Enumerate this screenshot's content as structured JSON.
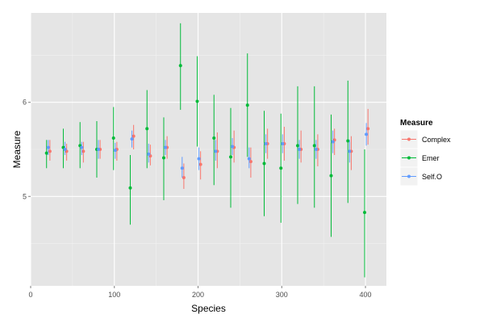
{
  "chart_data": {
    "type": "scatter",
    "title": "",
    "xlabel": "Species",
    "ylabel": "Measure",
    "xlim": [
      0,
      425
    ],
    "ylim": [
      4.05,
      6.95
    ],
    "x_ticks": [
      0,
      100,
      200,
      300,
      400
    ],
    "x_tick_labels": [
      "0",
      "100",
      "200",
      "300",
      "400"
    ],
    "y_ticks": [
      5,
      6
    ],
    "y_tick_labels": [
      "5",
      "6"
    ],
    "grid": true,
    "legend": {
      "title": "Measure",
      "position": "right"
    },
    "series": [
      {
        "name": "Complex",
        "color": "#F8766D",
        "points": [
          {
            "x": 23,
            "y": 5.48,
            "lo": 5.38,
            "hi": 5.6
          },
          {
            "x": 43,
            "y": 5.48,
            "lo": 5.38,
            "hi": 5.56
          },
          {
            "x": 63,
            "y": 5.48,
            "lo": 5.36,
            "hi": 5.58
          },
          {
            "x": 83,
            "y": 5.5,
            "lo": 5.4,
            "hi": 5.6
          },
          {
            "x": 103,
            "y": 5.5,
            "lo": 5.38,
            "hi": 5.58
          },
          {
            "x": 123,
            "y": 5.64,
            "lo": 5.5,
            "hi": 5.76
          },
          {
            "x": 143,
            "y": 5.43,
            "lo": 5.33,
            "hi": 5.55
          },
          {
            "x": 163,
            "y": 5.52,
            "lo": 5.4,
            "hi": 5.64
          },
          {
            "x": 183,
            "y": 5.2,
            "lo": 5.08,
            "hi": 5.35
          },
          {
            "x": 203,
            "y": 5.34,
            "lo": 5.18,
            "hi": 5.48
          },
          {
            "x": 223,
            "y": 5.48,
            "lo": 5.3,
            "hi": 5.68
          },
          {
            "x": 243,
            "y": 5.52,
            "lo": 5.36,
            "hi": 5.7
          },
          {
            "x": 263,
            "y": 5.37,
            "lo": 5.2,
            "hi": 5.52
          },
          {
            "x": 283,
            "y": 5.56,
            "lo": 5.4,
            "hi": 5.72
          },
          {
            "x": 303,
            "y": 5.56,
            "lo": 5.38,
            "hi": 5.74
          },
          {
            "x": 323,
            "y": 5.5,
            "lo": 5.36,
            "hi": 5.7
          },
          {
            "x": 343,
            "y": 5.5,
            "lo": 5.32,
            "hi": 5.66
          },
          {
            "x": 363,
            "y": 5.6,
            "lo": 5.44,
            "hi": 5.72
          },
          {
            "x": 383,
            "y": 5.48,
            "lo": 5.28,
            "hi": 5.64
          },
          {
            "x": 403,
            "y": 5.72,
            "lo": 5.55,
            "hi": 5.93
          }
        ]
      },
      {
        "name": "Emer",
        "color": "#00BA38",
        "points": [
          {
            "x": 19,
            "y": 5.46,
            "lo": 5.3,
            "hi": 5.6
          },
          {
            "x": 39,
            "y": 5.52,
            "lo": 5.3,
            "hi": 5.72
          },
          {
            "x": 59,
            "y": 5.54,
            "lo": 5.3,
            "hi": 5.79
          },
          {
            "x": 79,
            "y": 5.5,
            "lo": 5.2,
            "hi": 5.8
          },
          {
            "x": 99,
            "y": 5.62,
            "lo": 5.28,
            "hi": 5.95
          },
          {
            "x": 119,
            "y": 5.09,
            "lo": 4.7,
            "hi": 5.44
          },
          {
            "x": 139,
            "y": 5.72,
            "lo": 5.3,
            "hi": 6.13
          },
          {
            "x": 159,
            "y": 5.41,
            "lo": 4.96,
            "hi": 5.84
          },
          {
            "x": 179,
            "y": 6.39,
            "lo": 5.92,
            "hi": 6.84
          },
          {
            "x": 199,
            "y": 6.01,
            "lo": 5.53,
            "hi": 6.49
          },
          {
            "x": 219,
            "y": 5.62,
            "lo": 5.12,
            "hi": 6.08
          },
          {
            "x": 239,
            "y": 5.42,
            "lo": 4.88,
            "hi": 5.94
          },
          {
            "x": 259,
            "y": 5.97,
            "lo": 5.42,
            "hi": 6.52
          },
          {
            "x": 279,
            "y": 5.35,
            "lo": 4.79,
            "hi": 5.91
          },
          {
            "x": 299,
            "y": 5.3,
            "lo": 4.72,
            "hi": 5.88
          },
          {
            "x": 319,
            "y": 5.54,
            "lo": 4.92,
            "hi": 6.17
          },
          {
            "x": 339,
            "y": 5.54,
            "lo": 4.88,
            "hi": 6.17
          },
          {
            "x": 359,
            "y": 5.22,
            "lo": 4.57,
            "hi": 5.87
          },
          {
            "x": 379,
            "y": 5.59,
            "lo": 4.93,
            "hi": 6.23
          },
          {
            "x": 399,
            "y": 4.83,
            "lo": 4.14,
            "hi": 5.5
          }
        ]
      },
      {
        "name": "Self.O",
        "color": "#619CFF",
        "points": [
          {
            "x": 21,
            "y": 5.52,
            "lo": 5.44,
            "hi": 5.6
          },
          {
            "x": 41,
            "y": 5.5,
            "lo": 5.44,
            "hi": 5.58
          },
          {
            "x": 61,
            "y": 5.52,
            "lo": 5.44,
            "hi": 5.58
          },
          {
            "x": 81,
            "y": 5.5,
            "lo": 5.4,
            "hi": 5.6
          },
          {
            "x": 101,
            "y": 5.49,
            "lo": 5.4,
            "hi": 5.57
          },
          {
            "x": 121,
            "y": 5.61,
            "lo": 5.52,
            "hi": 5.7
          },
          {
            "x": 141,
            "y": 5.45,
            "lo": 5.36,
            "hi": 5.56
          },
          {
            "x": 161,
            "y": 5.52,
            "lo": 5.44,
            "hi": 5.6
          },
          {
            "x": 181,
            "y": 5.3,
            "lo": 5.2,
            "hi": 5.42
          },
          {
            "x": 201,
            "y": 5.4,
            "lo": 5.28,
            "hi": 5.52
          },
          {
            "x": 221,
            "y": 5.48,
            "lo": 5.38,
            "hi": 5.6
          },
          {
            "x": 241,
            "y": 5.53,
            "lo": 5.44,
            "hi": 5.62
          },
          {
            "x": 261,
            "y": 5.4,
            "lo": 5.3,
            "hi": 5.52
          },
          {
            "x": 281,
            "y": 5.56,
            "lo": 5.46,
            "hi": 5.66
          },
          {
            "x": 301,
            "y": 5.56,
            "lo": 5.46,
            "hi": 5.66
          },
          {
            "x": 321,
            "y": 5.5,
            "lo": 5.4,
            "hi": 5.6
          },
          {
            "x": 341,
            "y": 5.5,
            "lo": 5.4,
            "hi": 5.6
          },
          {
            "x": 361,
            "y": 5.58,
            "lo": 5.46,
            "hi": 5.7
          },
          {
            "x": 381,
            "y": 5.48,
            "lo": 5.36,
            "hi": 5.6
          },
          {
            "x": 401,
            "y": 5.66,
            "lo": 5.54,
            "hi": 5.78
          }
        ]
      }
    ]
  }
}
